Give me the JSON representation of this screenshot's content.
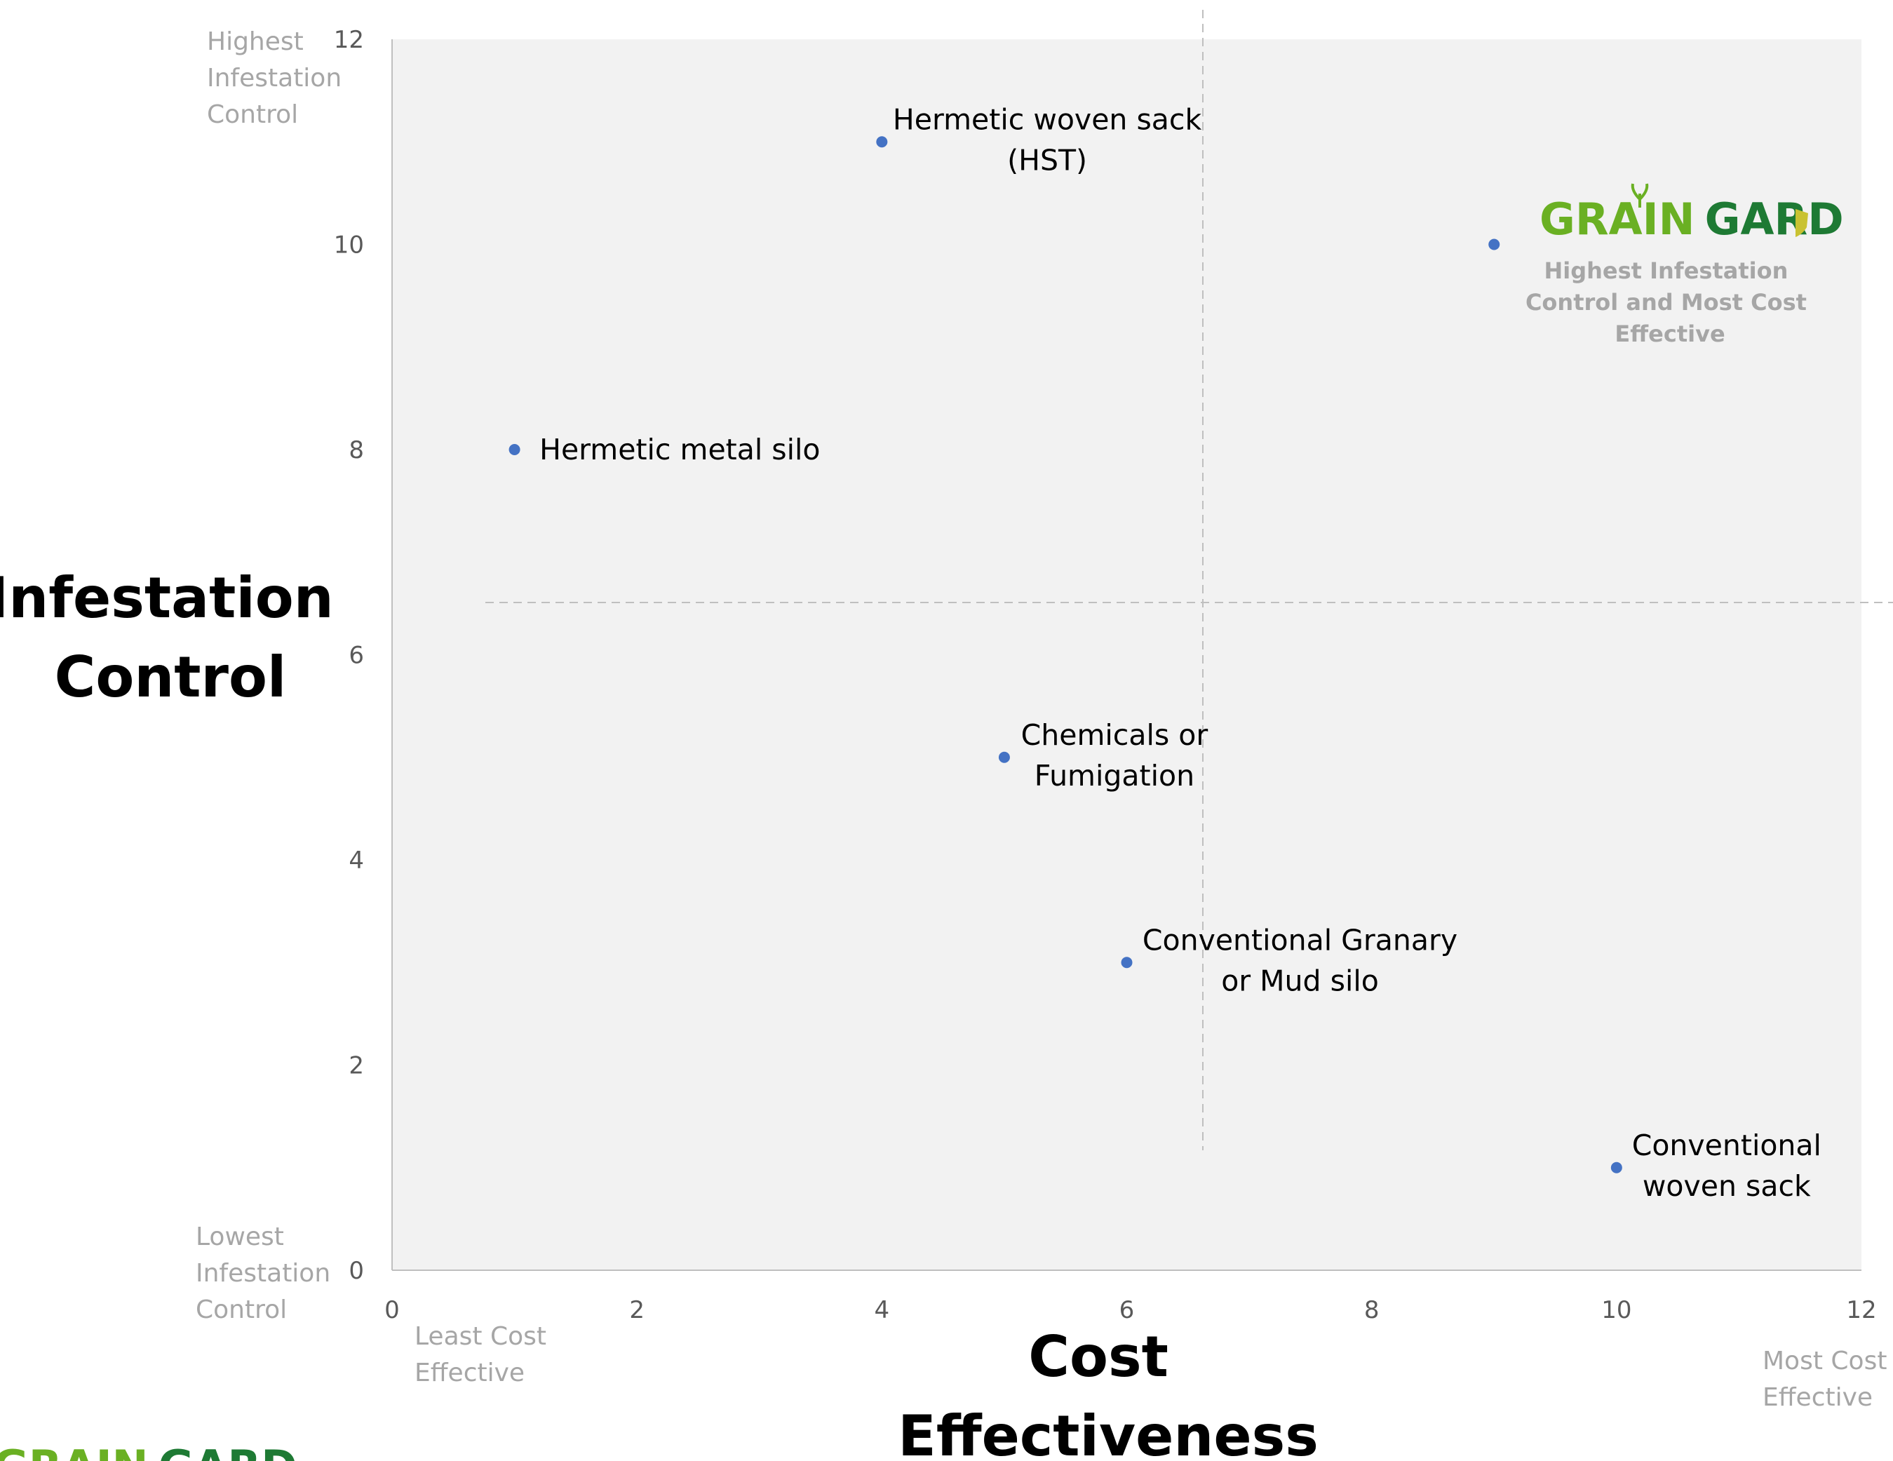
{
  "chart_data": {
    "type": "scatter",
    "xlabel_lines": [
      "Cost",
      "Effectiveness"
    ],
    "ylabel_lines": [
      "Infestation",
      "Control"
    ],
    "xlim": [
      0,
      12
    ],
    "ylim": [
      0,
      12
    ],
    "xticks": [
      0,
      2,
      4,
      6,
      8,
      10,
      12
    ],
    "yticks": [
      0,
      2,
      4,
      6,
      8,
      10,
      12
    ],
    "grid": false,
    "quadrant_dividers": {
      "x": 6.6,
      "y": 6.5
    },
    "marker_color": "#4472c4",
    "plot_background": "#f2f2f2",
    "points": [
      {
        "x": 4,
        "y": 11,
        "label_lines": [
          "Hermetic woven sack",
          "(HST)"
        ]
      },
      {
        "x": 9,
        "y": 10,
        "label_lines": []
      },
      {
        "x": 1,
        "y": 8,
        "label_lines": [
          "Hermetic metal silo"
        ]
      },
      {
        "x": 5,
        "y": 5,
        "label_lines": [
          "Chemicals or",
          "Fumigation"
        ]
      },
      {
        "x": 6,
        "y": 3,
        "label_lines": [
          "Conventional Granary",
          "or Mud silo"
        ]
      },
      {
        "x": 10,
        "y": 1,
        "label_lines": [
          "Conventional",
          "woven sack"
        ]
      }
    ],
    "corner_labels": {
      "y_top": [
        "Highest",
        "Infestation",
        "Control"
      ],
      "y_bottom": [
        "Lowest",
        "Infestation",
        "Control"
      ],
      "x_left": [
        "Least Cost",
        "Effective"
      ],
      "x_right": [
        "Most Cost",
        "Effective"
      ]
    },
    "callout": {
      "brand_part1": "GRAIN",
      "brand_part2": "GARD",
      "text_lines": [
        "Highest Infestation",
        "Control and Most Cost",
        "Effective"
      ],
      "brand_color_light": "#6ab023",
      "brand_color_dark": "#1e7a34"
    },
    "footer_logo": {
      "brand_part1": "GRAIN",
      "brand_part2": "GARD"
    }
  }
}
